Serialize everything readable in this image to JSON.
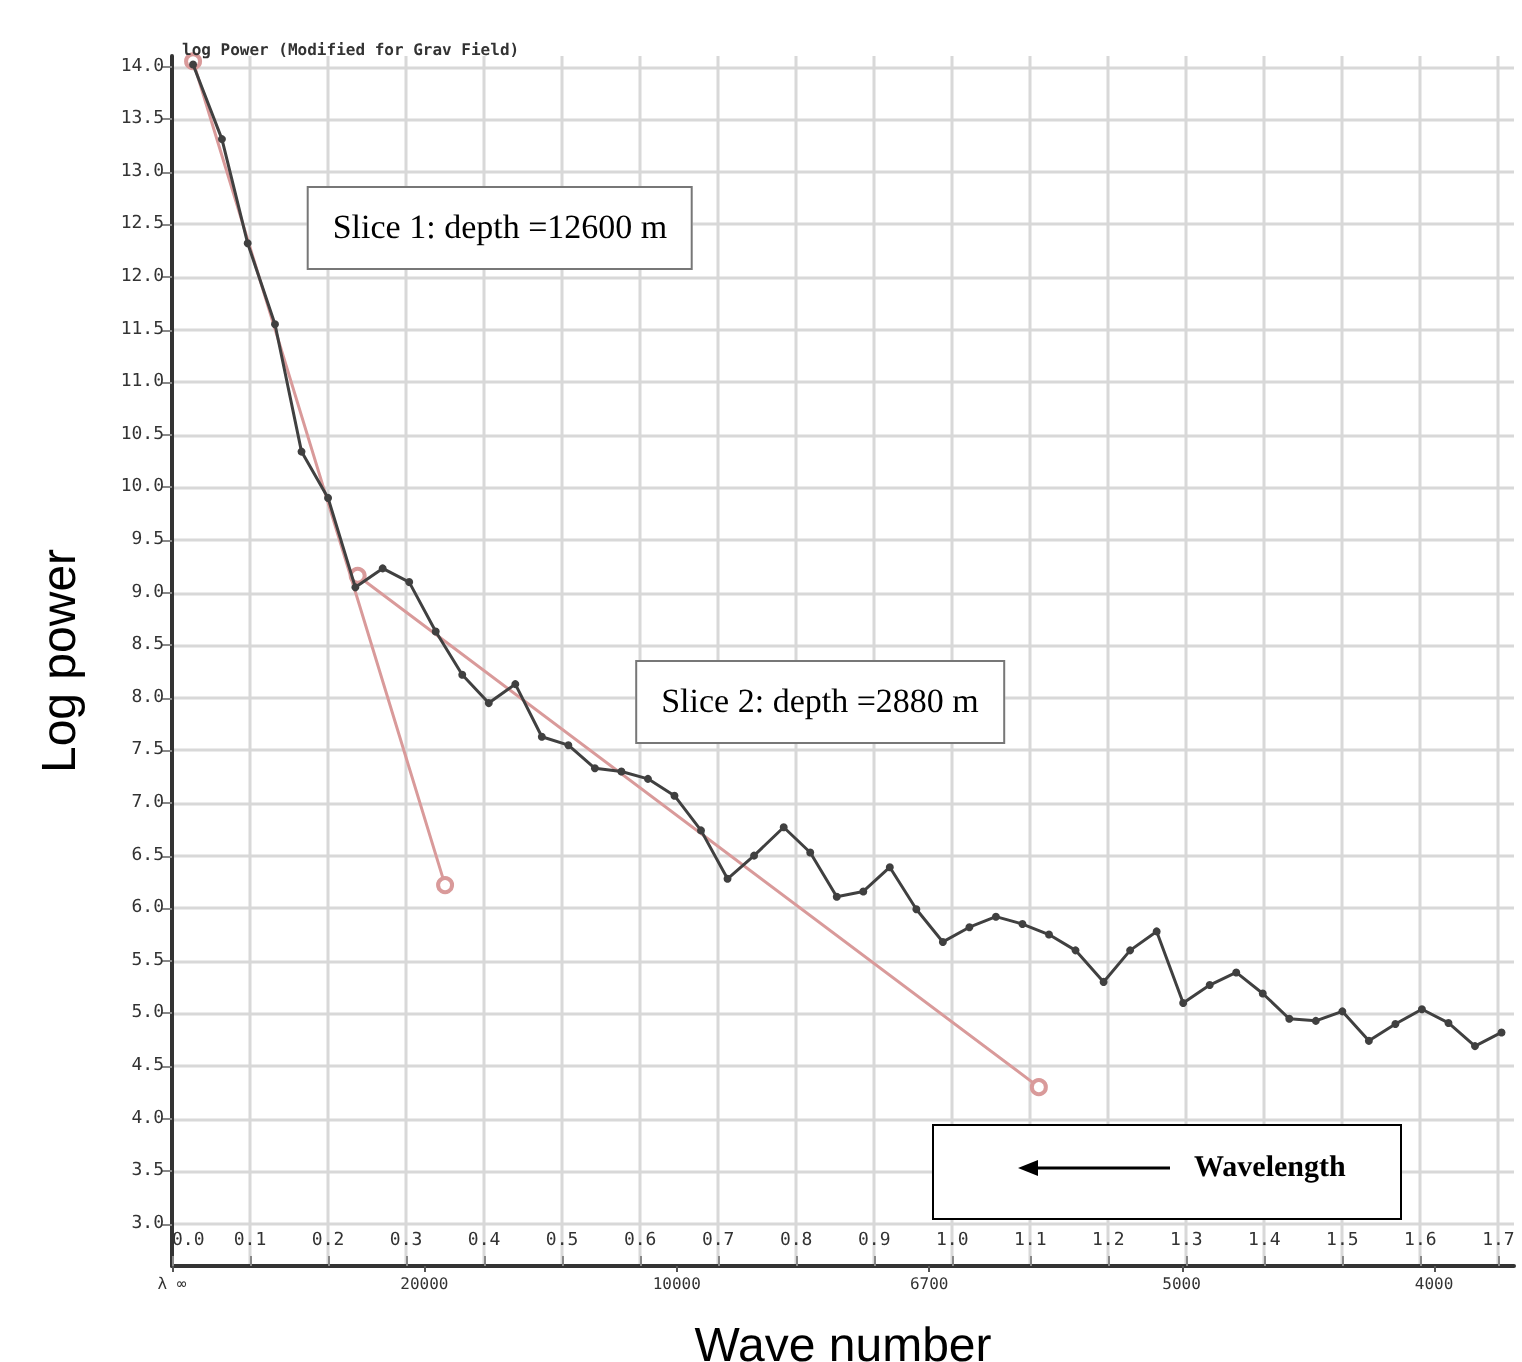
{
  "chart_data": {
    "type": "line",
    "title": "log Power (Modified for Grav Field)",
    "xlabel": "Wave number",
    "ylabel": "Log power",
    "annotations": [
      "Slice 1: depth =12600 m",
      "Slice 2: depth =2880 m",
      "Wavelength",
      "λ ∞",
      "20000",
      "10000",
      "6700",
      "5000",
      "4000"
    ],
    "series": [
      {
        "color": "#404040",
        "marker": "circle",
        "x": [
          0.027,
          0.064,
          0.097,
          0.132,
          0.166,
          0.2,
          0.235,
          0.27,
          0.304,
          0.338,
          0.372,
          0.406,
          0.44,
          0.474,
          0.508,
          0.542,
          0.576,
          0.61,
          0.644,
          0.678,
          0.712,
          0.746,
          0.784,
          0.818,
          0.852,
          0.886,
          0.92,
          0.954,
          0.988,
          1.022,
          1.056,
          1.09,
          1.124,
          1.158,
          1.194,
          1.228,
          1.262,
          1.296,
          1.33,
          1.364,
          1.398,
          1.432,
          1.466,
          1.5,
          1.534,
          1.568,
          1.602,
          1.636,
          1.67,
          1.704
        ],
        "values": [
          14.02,
          13.31,
          12.32,
          11.55,
          10.34,
          9.9,
          9.05,
          9.23,
          9.1,
          8.63,
          8.22,
          7.95,
          8.13,
          7.63,
          7.55,
          7.33,
          7.3,
          7.23,
          7.07,
          6.74,
          6.28,
          6.5,
          6.77,
          6.53,
          6.11,
          6.16,
          6.39,
          5.99,
          5.68,
          5.82,
          5.92,
          5.85,
          5.75,
          5.6,
          5.3,
          5.6,
          5.78,
          5.1,
          5.27,
          5.39,
          5.19,
          4.95,
          4.93,
          5.02,
          4.74,
          4.9,
          5.04,
          4.91,
          4.69,
          4.82
        ]
      },
      {
        "color": "#d99a9a",
        "marker": "circle",
        "x": [
          0.027,
          0.35
        ],
        "values": [
          14.05,
          6.22
        ]
      },
      {
        "color": "#d99a9a",
        "marker": "circle",
        "x": [
          0.238,
          1.111
        ],
        "values": [
          9.16,
          4.3
        ]
      }
    ],
    "xlim": [
      0,
      1.72
    ],
    "ylim": [
      2.6,
      14.1
    ],
    "xticks": [
      {
        "value": 0,
        "label": "0.0"
      },
      0.1,
      0.2,
      0.3,
      0.4,
      0.5,
      0.6,
      0.7,
      0.8,
      0.9,
      {
        "value": 1,
        "label": "1.0"
      },
      1.1,
      1.2,
      1.3,
      1.4,
      1.5,
      1.6,
      1.7
    ],
    "yticks": [
      {
        "value": 3,
        "label": "3.0"
      },
      3.5,
      {
        "value": 4,
        "label": "4.0"
      },
      4.5,
      {
        "value": 5,
        "label": "5.0"
      },
      5.5,
      {
        "value": 6,
        "label": "6.0"
      },
      6.5,
      {
        "value": 7,
        "label": "7.0"
      },
      7.5,
      {
        "value": 8,
        "label": "8.0"
      },
      8.5,
      {
        "value": 9,
        "label": "9.0"
      },
      9.5,
      {
        "value": 10,
        "label": "10.0"
      },
      10.5,
      {
        "value": 11,
        "label": "11.0"
      },
      11.5,
      {
        "value": 12,
        "label": "12.0"
      },
      12.5,
      {
        "value": 13,
        "label": "13.0"
      },
      13.5,
      {
        "value": 14,
        "label": "14.0"
      }
    ],
    "grid": true
  }
}
